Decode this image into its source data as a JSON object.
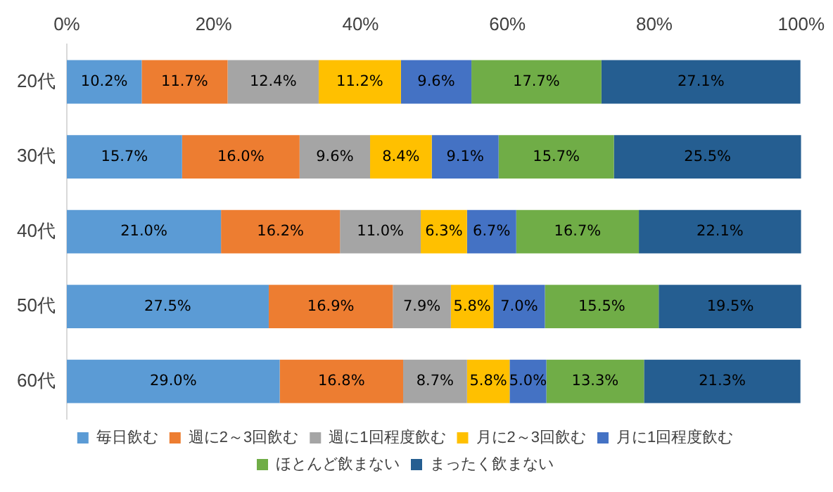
{
  "chart_data": {
    "type": "bar",
    "orientation": "horizontal",
    "stacked": true,
    "categories": [
      "20代",
      "30代",
      "40代",
      "50代",
      "60代"
    ],
    "xlim": [
      0,
      100
    ],
    "xticks": [
      {
        "value": 0,
        "label": "0%"
      },
      {
        "value": 20,
        "label": "20%"
      },
      {
        "value": 40,
        "label": "40%"
      },
      {
        "value": 60,
        "label": "60%"
      },
      {
        "value": 80,
        "label": "80%"
      },
      {
        "value": 100,
        "label": "100%"
      }
    ],
    "grid": false,
    "legend": "bottom",
    "series": [
      {
        "name": "毎日飲む",
        "color": "#5b9bd5",
        "values": [
          10.2,
          15.7,
          21.0,
          27.5,
          29.0
        ],
        "value_labels": [
          "10.2%",
          "15.7%",
          "21.0%",
          "27.5%",
          "29.0%"
        ]
      },
      {
        "name": "週に2～3回飲む",
        "color": "#ed7d31",
        "values": [
          11.7,
          16.0,
          16.2,
          16.9,
          16.8
        ],
        "value_labels": [
          "11.7%",
          "16.0%",
          "16.2%",
          "16.9%",
          "16.8%"
        ]
      },
      {
        "name": "週に1回程度飲む",
        "color": "#a5a5a5",
        "values": [
          12.4,
          9.6,
          11.0,
          7.9,
          8.7
        ],
        "value_labels": [
          "12.4%",
          "9.6%",
          "11.0%",
          "7.9%",
          "8.7%"
        ]
      },
      {
        "name": "月に2～3回飲む",
        "color": "#ffc000",
        "values": [
          11.2,
          8.4,
          6.3,
          5.8,
          5.8
        ],
        "value_labels": [
          "11.2%",
          "8.4%",
          "6.3%",
          "5.8%",
          "5.8%"
        ]
      },
      {
        "name": "月に1回程度飲む",
        "color": "#4472c4",
        "values": [
          9.6,
          9.1,
          6.7,
          7.0,
          5.0
        ],
        "value_labels": [
          "9.6%",
          "9.1%",
          "6.7%",
          "7.0%",
          "5.0%"
        ]
      },
      {
        "name": "ほとんど飲まない",
        "color": "#70ad47",
        "values": [
          17.7,
          15.7,
          16.7,
          15.5,
          13.3
        ],
        "value_labels": [
          "17.7%",
          "15.7%",
          "16.7%",
          "15.5%",
          "13.3%"
        ]
      },
      {
        "name": "まったく飲まない",
        "color": "#255e91",
        "values": [
          27.1,
          25.5,
          22.1,
          19.5,
          21.3
        ],
        "value_labels": [
          "27.1%",
          "25.5%",
          "22.1%",
          "19.5%",
          "21.3%"
        ]
      }
    ]
  }
}
